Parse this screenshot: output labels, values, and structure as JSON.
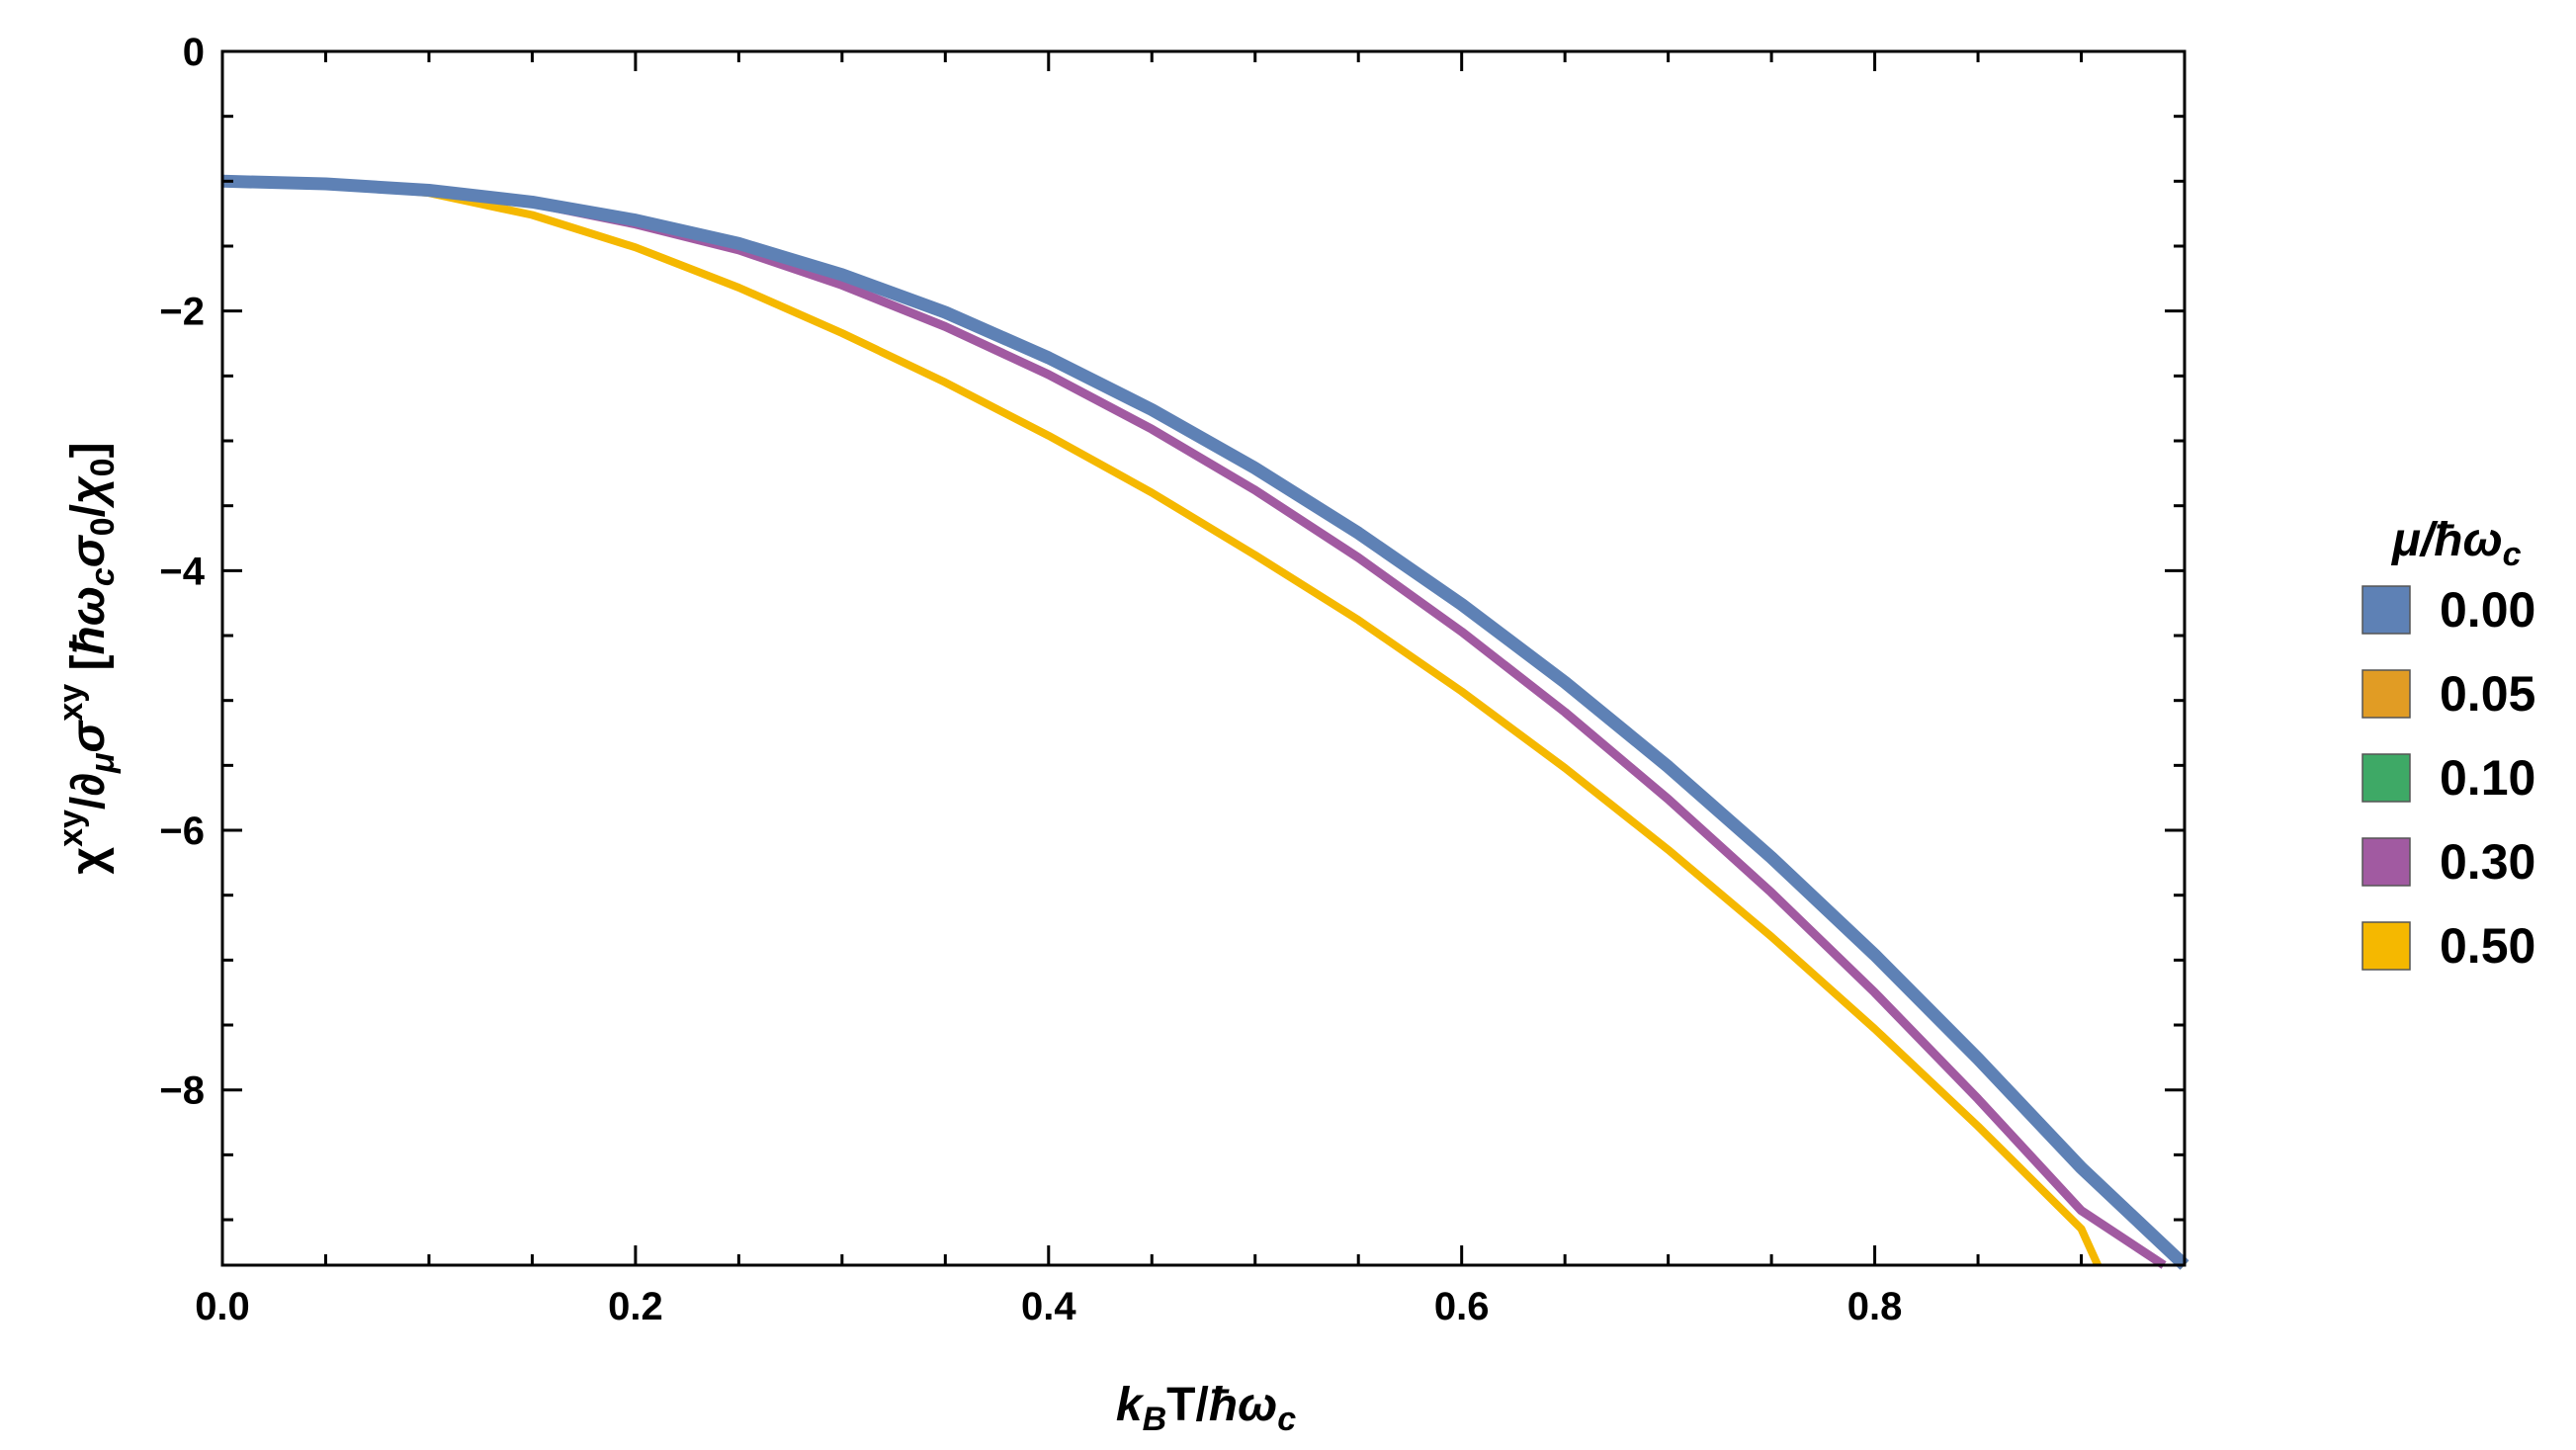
{
  "chart_data": {
    "type": "line",
    "xlabel": "k_B T/ħω_c",
    "ylabel": "χ^xy/∂_μσ^xy [ħω_c σ_0/χ_0]",
    "xlim": [
      0,
      0.95
    ],
    "ylim": [
      -9.35,
      0
    ],
    "x_ticks": [
      "0.0",
      "0.2",
      "0.4",
      "0.6",
      "0.8"
    ],
    "y_ticks": [
      "0",
      "-2",
      "-4",
      "-6",
      "-8"
    ],
    "grid": false,
    "legend": {
      "title": "μ/ħω_c",
      "placement": "right",
      "entries": [
        "0.00",
        "0.05",
        "0.10",
        "0.30",
        "0.50"
      ]
    },
    "series": [
      {
        "name": "0.00",
        "color": "#5e81b5",
        "x": [
          0,
          0.05,
          0.1,
          0.15,
          0.2,
          0.25,
          0.3,
          0.35,
          0.4,
          0.45,
          0.5,
          0.55,
          0.6,
          0.65,
          0.7,
          0.75,
          0.8,
          0.85,
          0.9,
          0.95
        ],
        "y": [
          -1.0,
          -1.02,
          -1.07,
          -1.16,
          -1.3,
          -1.48,
          -1.72,
          -2.01,
          -2.36,
          -2.76,
          -3.21,
          -3.71,
          -4.26,
          -4.86,
          -5.51,
          -6.21,
          -6.96,
          -7.76,
          -8.6,
          -9.35
        ]
      },
      {
        "name": "0.05",
        "color": "#e19c24",
        "x": [
          0,
          0.05,
          0.1,
          0.15,
          0.2,
          0.25,
          0.3,
          0.35,
          0.4,
          0.45,
          0.5,
          0.55,
          0.6,
          0.65,
          0.7,
          0.75,
          0.8,
          0.85,
          0.9,
          0.95
        ],
        "y": [
          -1.0,
          -1.02,
          -1.07,
          -1.16,
          -1.3,
          -1.48,
          -1.72,
          -2.01,
          -2.36,
          -2.76,
          -3.21,
          -3.71,
          -4.26,
          -4.86,
          -5.51,
          -6.21,
          -6.96,
          -7.76,
          -8.6,
          -9.35
        ]
      },
      {
        "name": "0.10",
        "color": "#3ea966",
        "x": [
          0,
          0.05,
          0.1,
          0.15,
          0.2,
          0.25,
          0.3,
          0.35,
          0.4,
          0.45,
          0.5,
          0.55,
          0.6,
          0.65,
          0.7,
          0.75,
          0.8,
          0.85,
          0.9,
          0.95
        ],
        "y": [
          -1.0,
          -1.02,
          -1.07,
          -1.16,
          -1.3,
          -1.48,
          -1.72,
          -2.01,
          -2.36,
          -2.76,
          -3.21,
          -3.71,
          -4.26,
          -4.86,
          -5.51,
          -6.21,
          -6.96,
          -7.76,
          -8.6,
          -9.35
        ]
      },
      {
        "name": "0.30",
        "color": "#a15aa1",
        "x": [
          0,
          0.05,
          0.1,
          0.15,
          0.2,
          0.25,
          0.3,
          0.35,
          0.4,
          0.45,
          0.5,
          0.55,
          0.6,
          0.65,
          0.7,
          0.75,
          0.8,
          0.85,
          0.9,
          0.94
        ],
        "y": [
          -1.0,
          -1.02,
          -1.07,
          -1.17,
          -1.33,
          -1.53,
          -1.8,
          -2.12,
          -2.49,
          -2.91,
          -3.38,
          -3.9,
          -4.47,
          -5.09,
          -5.76,
          -6.48,
          -7.25,
          -8.07,
          -8.93,
          -9.35
        ]
      },
      {
        "name": "0.50",
        "color": "#f5b800",
        "x": [
          0,
          0.05,
          0.1,
          0.15,
          0.2,
          0.25,
          0.3,
          0.35,
          0.4,
          0.45,
          0.5,
          0.55,
          0.6,
          0.65,
          0.7,
          0.75,
          0.8,
          0.85,
          0.9,
          0.908
        ],
        "y": [
          -1.0,
          -1.02,
          -1.09,
          -1.26,
          -1.51,
          -1.82,
          -2.17,
          -2.55,
          -2.96,
          -3.4,
          -3.88,
          -4.38,
          -4.93,
          -5.52,
          -6.15,
          -6.82,
          -7.53,
          -8.28,
          -9.07,
          -9.35
        ]
      }
    ]
  }
}
